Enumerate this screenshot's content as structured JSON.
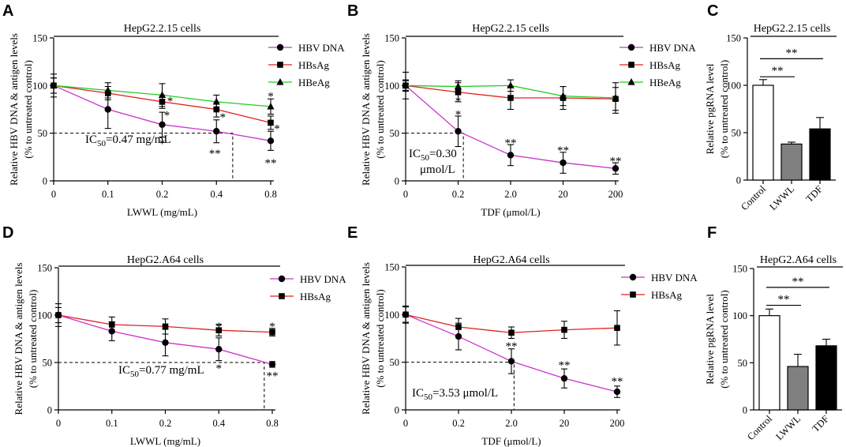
{
  "chart_data": [
    {
      "panel": "A",
      "type": "line",
      "title": "HepG2.2.15 cells",
      "xlabel": "LWWL (mg/mL)",
      "ylabel_lines": [
        "Relative HBV DNA & antigen levels",
        "(% to untreated control)"
      ],
      "categories": [
        "0",
        "0.1",
        "0.2",
        "0.4",
        "0.8"
      ],
      "yticks": [
        "0",
        "50",
        "100",
        "150"
      ],
      "ylim": [
        0,
        150
      ],
      "series": [
        {
          "name": "HBV DNA",
          "color": "#cc33cc",
          "marker": "circle",
          "values": [
            100,
            75,
            59,
            52,
            42
          ],
          "err": [
            12,
            20,
            13,
            12,
            10
          ]
        },
        {
          "name": "HBsAg",
          "color": "#e02020",
          "marker": "square",
          "values": [
            100,
            92,
            83,
            75,
            61
          ],
          "err": [
            8,
            7,
            7,
            8,
            7
          ]
        },
        {
          "name": "HBeAg",
          "color": "#22cc22",
          "marker": "triangle",
          "values": [
            100,
            95,
            90,
            83,
            78
          ],
          "err": [
            8,
            8,
            12,
            7,
            8
          ]
        }
      ],
      "significance": [
        {
          "cat": 2,
          "y": 85,
          "dx": 10,
          "text": "*"
        },
        {
          "cat": 2,
          "y": 70,
          "dx": 6,
          "text": "*"
        },
        {
          "cat": 2,
          "y": 40,
          "dx": 0,
          "text": "*"
        },
        {
          "cat": 3,
          "y": 68,
          "dx": 8,
          "text": "*"
        },
        {
          "cat": 3,
          "y": 30,
          "dx": -2,
          "text": "**"
        },
        {
          "cat": 4,
          "y": 90,
          "dx": 0,
          "text": "*"
        },
        {
          "cat": 4,
          "y": 56,
          "dx": 8,
          "text": "*"
        },
        {
          "cat": 4,
          "y": 20,
          "dx": 0,
          "text": "**"
        }
      ],
      "ic50_label": {
        "pre": "IC",
        "sub": "50",
        "post": "=0.47 mg/mL"
      },
      "ic50_cat": 3.3
    },
    {
      "panel": "B",
      "type": "line",
      "title": "HepG2.2.15 cells",
      "xlabel": "TDF (μmol/L)",
      "ylabel_lines": [
        "Relative HBV DNA & antigen levels",
        "(% to untreated control)"
      ],
      "categories": [
        "0",
        "0.2",
        "2.0",
        "20",
        "200"
      ],
      "yticks": [
        "0",
        "50",
        "100",
        "150"
      ],
      "ylim": [
        0,
        150
      ],
      "series": [
        {
          "name": "HBV DNA",
          "color": "#cc33cc",
          "marker": "circle",
          "values": [
            100,
            52,
            27,
            19,
            13
          ],
          "err": [
            14,
            16,
            11,
            11,
            6
          ]
        },
        {
          "name": "HBsAg",
          "color": "#e02020",
          "marker": "square",
          "values": [
            100,
            93,
            87,
            87,
            86
          ],
          "err": [
            5,
            10,
            12,
            12,
            12
          ]
        },
        {
          "name": "HBeAg",
          "color": "#22cc22",
          "marker": "triangle",
          "values": [
            100,
            99,
            100,
            89,
            87
          ],
          "err": [
            6,
            6,
            6,
            10,
            16
          ]
        }
      ],
      "significance": [
        {
          "cat": 1,
          "y": 85,
          "dx": 0,
          "text": "*"
        },
        {
          "cat": 1,
          "y": 71,
          "dx": 0,
          "text": "*"
        },
        {
          "cat": 2,
          "y": 41,
          "dx": 0,
          "text": "**"
        },
        {
          "cat": 3,
          "y": 33,
          "dx": 0,
          "text": "**"
        },
        {
          "cat": 4,
          "y": 22,
          "dx": 0,
          "text": "**"
        }
      ],
      "ic50_label": {
        "pre": "IC",
        "sub": "50",
        "post": "=0.30",
        "line2": "μmol/L"
      },
      "ic50_cat": 1.1
    },
    {
      "panel": "C",
      "type": "bar",
      "title": "HepG2.2.15 cells",
      "ylabel_lines": [
        "Relative pgRNA level",
        "(% to untreated control)"
      ],
      "categories": [
        "Control",
        "LWWL",
        "TDF"
      ],
      "yticks": [
        "0",
        "50",
        "100",
        "150"
      ],
      "ylim": [
        0,
        150
      ],
      "values": [
        100,
        38,
        54
      ],
      "err": [
        6,
        2,
        12
      ],
      "colors": [
        "#ffffff",
        "#808080",
        "#000000"
      ],
      "brackets": [
        {
          "from": 0,
          "to": 1,
          "y": 109,
          "text": "**"
        },
        {
          "from": 0,
          "to": 2,
          "y": 128,
          "text": "**"
        }
      ]
    },
    {
      "panel": "D",
      "type": "line",
      "title": "HepG2.A64 cells",
      "xlabel": "LWWL (mg/mL)",
      "ylabel_lines": [
        "Relative HBV DNA & antigen levels",
        "(% to untreated control)"
      ],
      "categories": [
        "0",
        "0.1",
        "0.2",
        "0.4",
        "0.8"
      ],
      "yticks": [
        "0",
        "50",
        "100",
        "150"
      ],
      "ylim": [
        0,
        150
      ],
      "series": [
        {
          "name": "HBV DNA",
          "color": "#cc33cc",
          "marker": "circle",
          "values": [
            100,
            83,
            71,
            64,
            48
          ],
          "err": [
            12,
            10,
            14,
            12,
            3
          ]
        },
        {
          "name": "HBsAg",
          "color": "#e02020",
          "marker": "square",
          "values": [
            100,
            90,
            88,
            84,
            82
          ],
          "err": [
            8,
            8,
            8,
            6,
            4
          ]
        }
      ],
      "significance": [
        {
          "cat": 3,
          "y": 89,
          "dx": 0,
          "text": "*"
        },
        {
          "cat": 3,
          "y": 45,
          "dx": 0,
          "text": "*"
        },
        {
          "cat": 4,
          "y": 89,
          "dx": 0,
          "text": "*"
        },
        {
          "cat": 4,
          "y": 37,
          "dx": 0,
          "text": "**"
        }
      ],
      "ic50_label": {
        "pre": "IC",
        "sub": "50",
        "post": "=0.77 mg/mL"
      },
      "ic50_cat": 3.85
    },
    {
      "panel": "E",
      "type": "line",
      "title": "HepG2.A64 cells",
      "xlabel": "TDF (μmol/L)",
      "ylabel_lines": [
        "Relative HBV DNA & antigen levels",
        "(% to untreated control)"
      ],
      "categories": [
        "0",
        "0.2",
        "2.0",
        "20",
        "200"
      ],
      "yticks": [
        "0",
        "50",
        "100",
        "150"
      ],
      "ylim": [
        0,
        150
      ],
      "series": [
        {
          "name": "HBV DNA",
          "color": "#cc33cc",
          "marker": "circle",
          "values": [
            100,
            77,
            51,
            33,
            19
          ],
          "err": [
            9,
            14,
            13,
            10,
            6
          ]
        },
        {
          "name": "HBsAg",
          "color": "#e02020",
          "marker": "square",
          "values": [
            100,
            87,
            81,
            84,
            86
          ],
          "err": [
            8,
            9,
            6,
            9,
            18
          ]
        }
      ],
      "significance": [
        {
          "cat": 2,
          "y": 68,
          "dx": 0,
          "text": "**"
        },
        {
          "cat": 3,
          "y": 48,
          "dx": 0,
          "text": "**"
        },
        {
          "cat": 4,
          "y": 31,
          "dx": 0,
          "text": "**"
        }
      ],
      "ic50_label": {
        "pre": "IC",
        "sub": "50",
        "post": "=3.53 μmol/L"
      },
      "ic50_cat": 2.05
    },
    {
      "panel": "F",
      "type": "bar",
      "title": "HepG2.A64 cells",
      "ylabel_lines": [
        "Relative pgRNA level",
        "(% to untreated control)"
      ],
      "categories": [
        "Control",
        "LWWL",
        "TDF"
      ],
      "yticks": [
        "0",
        "50",
        "100",
        "150"
      ],
      "ylim": [
        0,
        150
      ],
      "values": [
        100,
        46,
        68
      ],
      "err": [
        7,
        13,
        7
      ],
      "colors": [
        "#ffffff",
        "#808080",
        "#000000"
      ],
      "brackets": [
        {
          "from": 0,
          "to": 1,
          "y": 111,
          "text": "**"
        },
        {
          "from": 0,
          "to": 2,
          "y": 130,
          "text": "**"
        }
      ]
    }
  ]
}
